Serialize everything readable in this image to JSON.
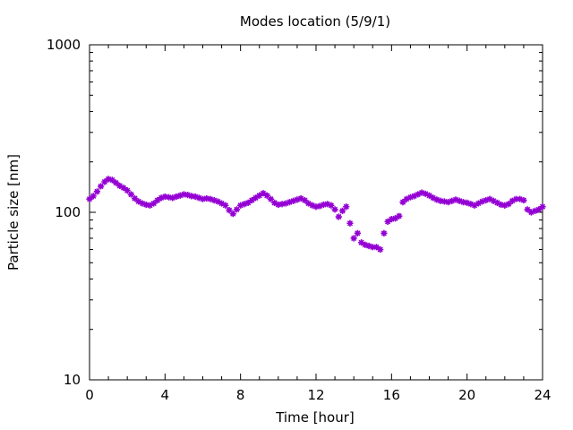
{
  "chart_data": {
    "type": "scatter",
    "title": "Modes location (5/9/1)",
    "xlabel": "Time [hour]",
    "ylabel": "Particle size [nm]",
    "xlim": [
      0,
      24
    ],
    "ylim": [
      10,
      1000
    ],
    "yscale": "log",
    "xticks": [
      "0",
      "4",
      "8",
      "12",
      "16",
      "20",
      "24"
    ],
    "yticks": [
      "10",
      "100",
      "1000"
    ],
    "marker": "star",
    "color": "#9400d3",
    "grid": false,
    "x": [
      0.0,
      0.2,
      0.4,
      0.6,
      0.8,
      1.0,
      1.2,
      1.4,
      1.6,
      1.8,
      2.0,
      2.2,
      2.4,
      2.6,
      2.8,
      3.0,
      3.2,
      3.4,
      3.6,
      3.8,
      4.0,
      4.2,
      4.4,
      4.6,
      4.8,
      5.0,
      5.2,
      5.4,
      5.6,
      5.8,
      6.0,
      6.2,
      6.4,
      6.6,
      6.8,
      7.0,
      7.2,
      7.4,
      7.6,
      7.8,
      8.0,
      8.2,
      8.4,
      8.6,
      8.8,
      9.0,
      9.2,
      9.4,
      9.6,
      9.8,
      10.0,
      10.2,
      10.4,
      10.6,
      10.8,
      11.0,
      11.2,
      11.4,
      11.6,
      11.8,
      12.0,
      12.2,
      12.4,
      12.6,
      12.8,
      13.0,
      13.2,
      13.4,
      13.6,
      13.8,
      14.0,
      14.2,
      14.4,
      14.6,
      14.8,
      15.0,
      15.2,
      15.4,
      15.6,
      15.8,
      16.0,
      16.2,
      16.4,
      16.6,
      16.8,
      17.0,
      17.2,
      17.4,
      17.6,
      17.8,
      18.0,
      18.2,
      18.4,
      18.6,
      18.8,
      19.0,
      19.2,
      19.4,
      19.6,
      19.8,
      20.0,
      20.2,
      20.4,
      20.6,
      20.8,
      21.0,
      21.2,
      21.4,
      21.6,
      21.8,
      22.0,
      22.2,
      22.4,
      22.6,
      22.8,
      23.0,
      23.2,
      23.4,
      23.6,
      23.8,
      24.0
    ],
    "y": [
      120,
      125,
      133,
      143,
      152,
      158,
      156,
      150,
      144,
      140,
      135,
      128,
      121,
      116,
      113,
      111,
      110,
      113,
      118,
      122,
      124,
      123,
      122,
      124,
      126,
      128,
      127,
      125,
      124,
      122,
      120,
      121,
      120,
      118,
      116,
      113,
      110,
      103,
      98,
      104,
      110,
      112,
      114,
      118,
      122,
      126,
      130,
      126,
      120,
      114,
      111,
      112,
      113,
      115,
      117,
      119,
      121,
      118,
      113,
      110,
      108,
      109,
      111,
      112,
      110,
      104,
      94,
      102,
      108,
      86,
      70,
      75,
      66,
      64,
      63,
      62,
      62,
      60,
      75,
      88,
      91,
      92,
      95,
      115,
      120,
      123,
      125,
      128,
      131,
      129,
      126,
      122,
      119,
      117,
      116,
      115,
      117,
      119,
      117,
      115,
      114,
      112,
      110,
      113,
      116,
      118,
      120,
      117,
      114,
      111,
      110,
      112,
      117,
      120,
      120,
      118,
      104,
      100,
      102,
      104,
      108
    ]
  }
}
